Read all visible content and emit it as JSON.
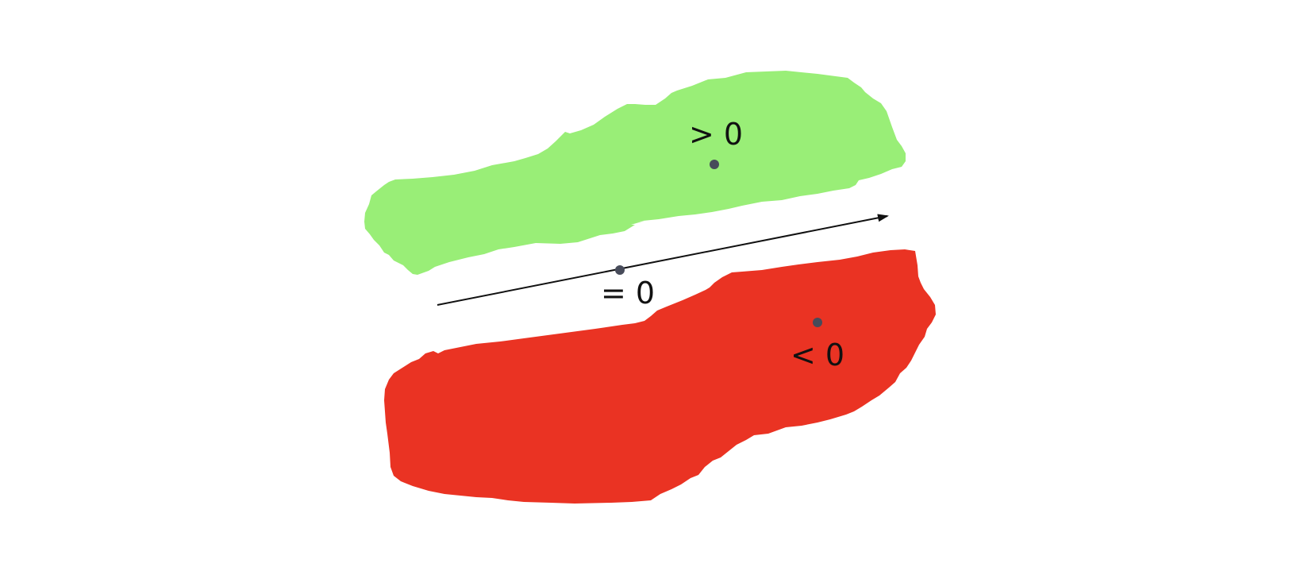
{
  "regions": {
    "positive": {
      "label": "> 0",
      "color": "#99ee77"
    },
    "negative": {
      "label": "< 0",
      "color": "#ea3323"
    },
    "boundary": {
      "label": "= 0"
    }
  },
  "arrow_color": "#111111",
  "point_color": "#474b5a",
  "icons": {
    "arrowhead": "arrowhead-icon"
  }
}
